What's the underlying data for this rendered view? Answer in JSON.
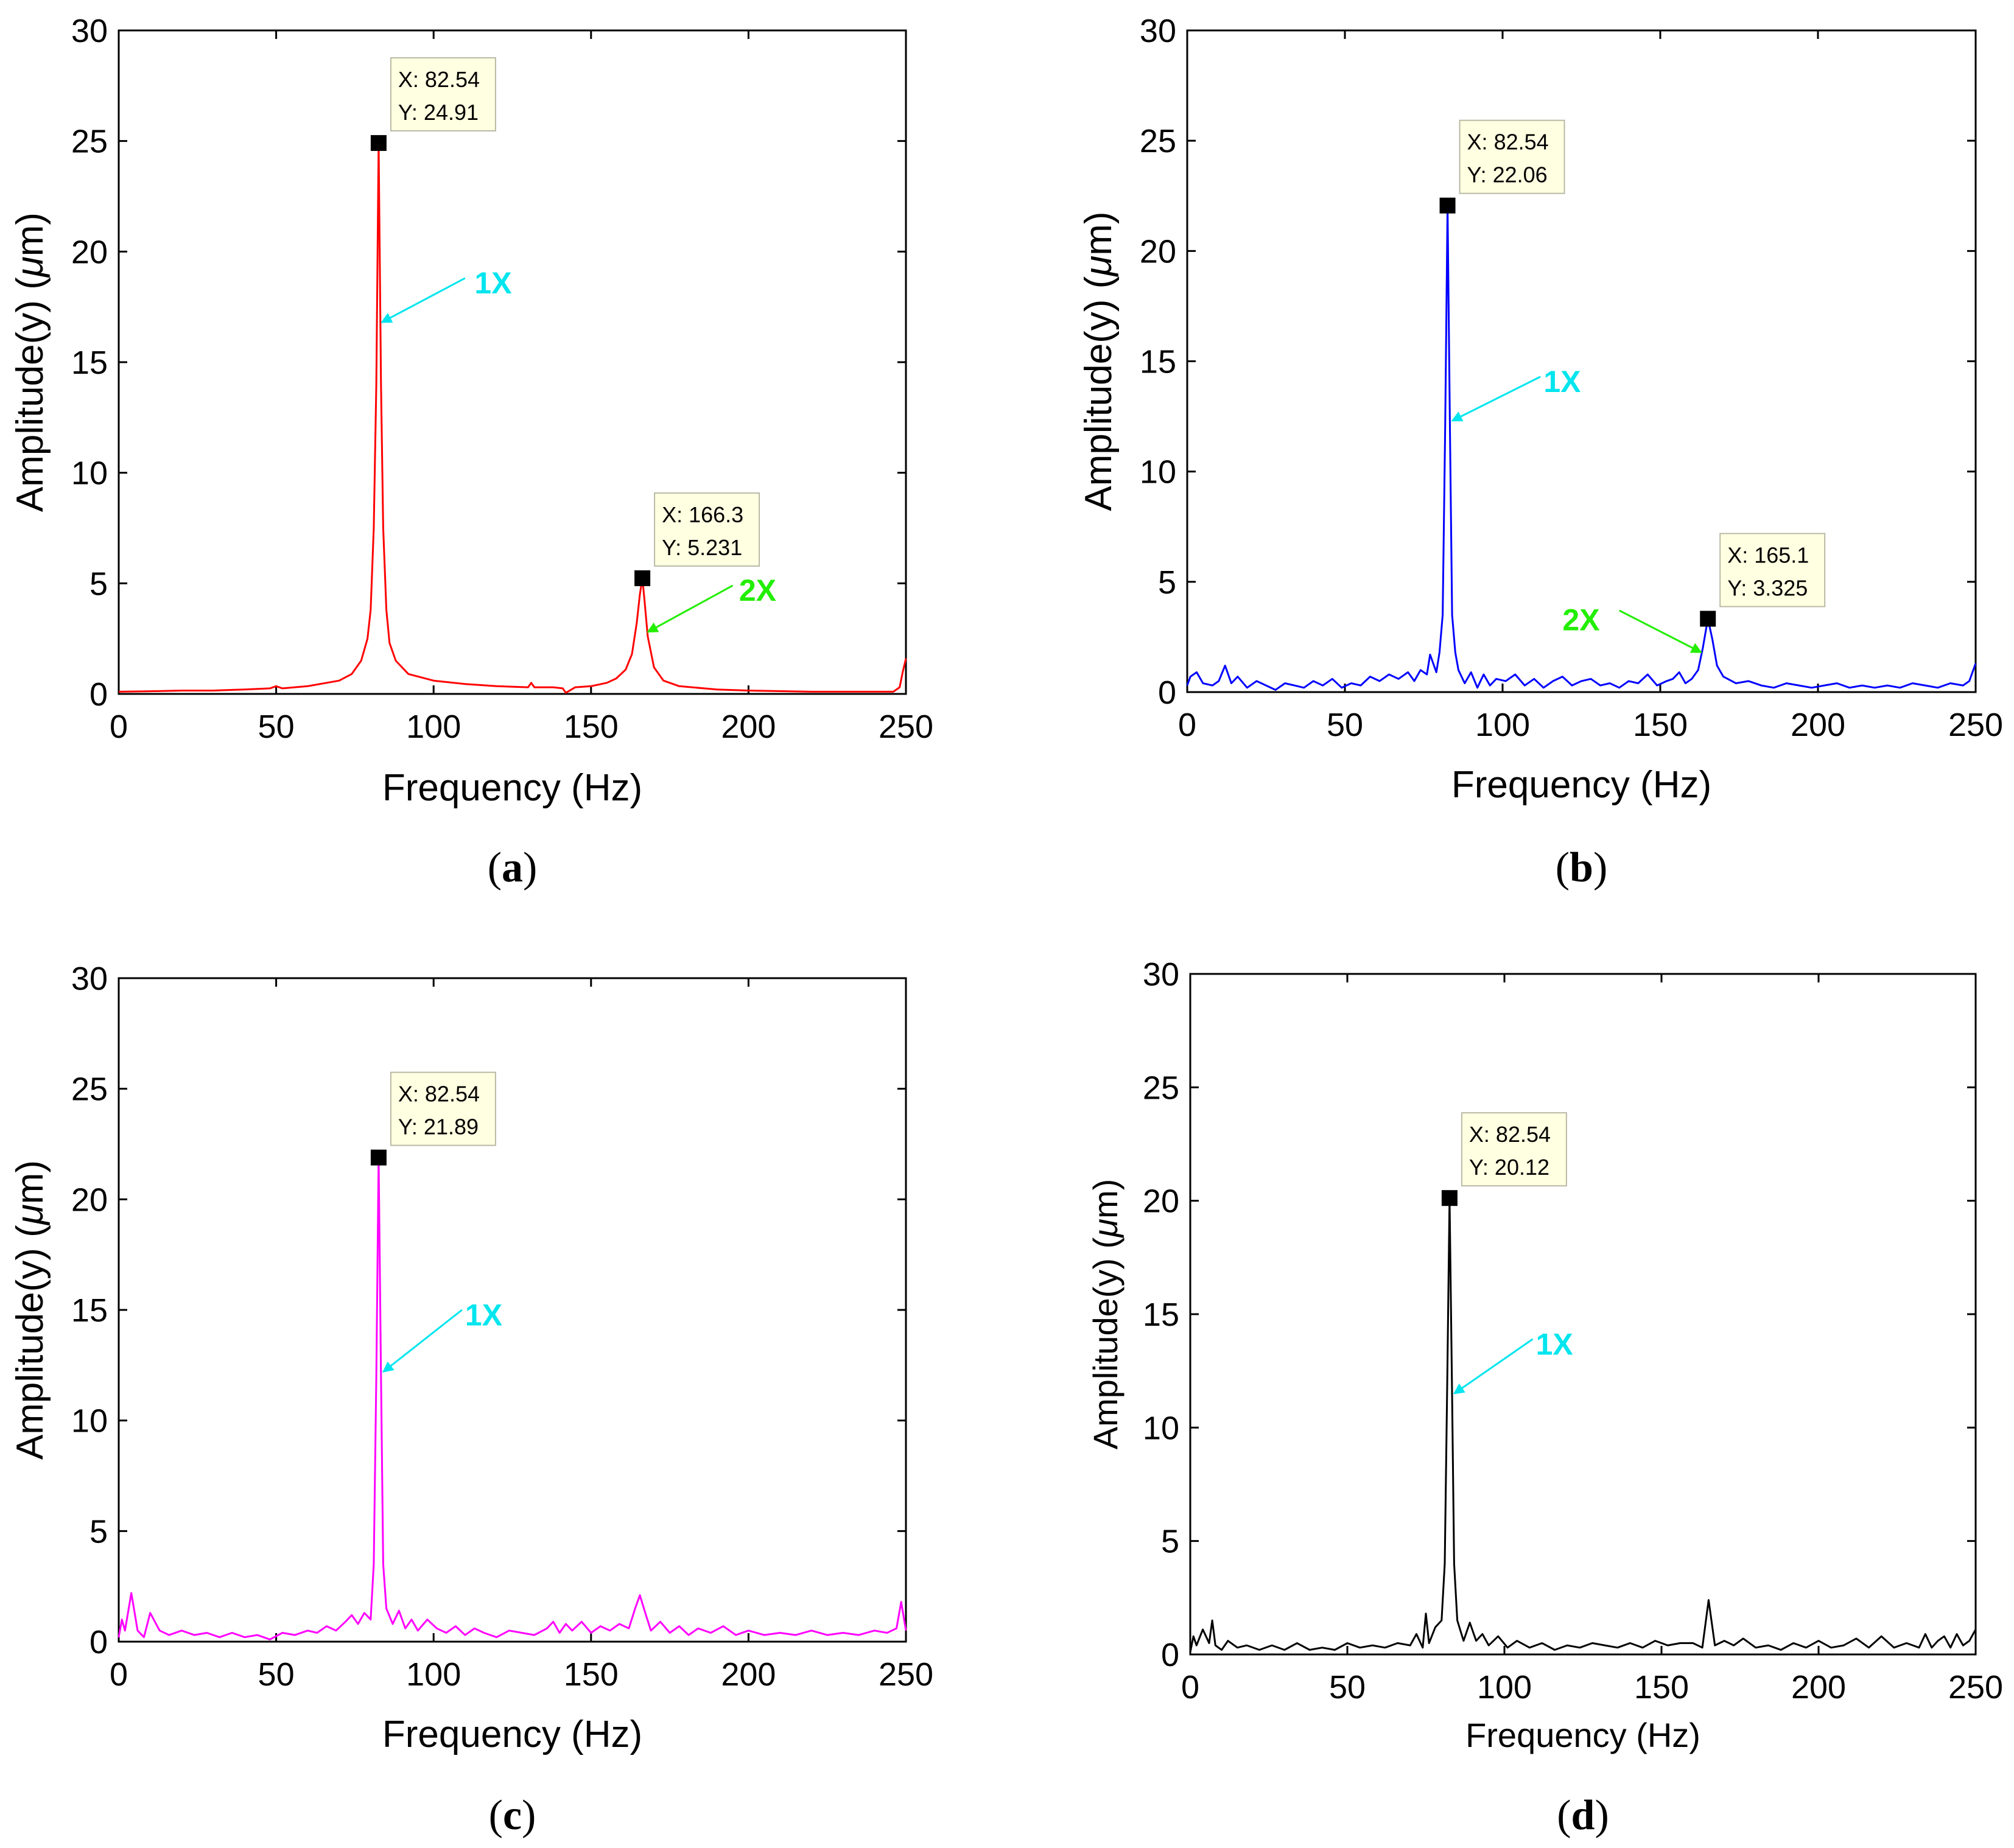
{
  "colors": {
    "a": "#ff0000",
    "b": "#0000ff",
    "c": "#ff00ff",
    "d": "#000000",
    "ann_1x": "#00e5ee",
    "ann_2x": "#22ee00"
  },
  "chart_data": [
    {
      "id": "a",
      "type": "line",
      "panel_label": "(a)",
      "xlabel": "Frequency (Hz)",
      "ylabel": "Amplitude(y) (μm)",
      "xlim": [
        0,
        250
      ],
      "ylim": [
        0,
        30
      ],
      "xticks": [
        0,
        50,
        100,
        150,
        200,
        250
      ],
      "yticks": [
        0,
        5,
        10,
        15,
        20,
        25,
        30
      ],
      "series": [
        {
          "name": "spectrum",
          "color": "#ff0000",
          "x": [
            0,
            10,
            20,
            30,
            40,
            48,
            50,
            52,
            60,
            66,
            70,
            74,
            77,
            79,
            80,
            81,
            81.8,
            82.54,
            83.3,
            84,
            85,
            86,
            88,
            92,
            100,
            110,
            120,
            130,
            131,
            132,
            138,
            141,
            142,
            145,
            150,
            155,
            158,
            161,
            163,
            164.5,
            165.5,
            166.3,
            167,
            168,
            170,
            173,
            178,
            190,
            200,
            220,
            240,
            246,
            248,
            249,
            250
          ],
          "y": [
            0.1,
            0.12,
            0.15,
            0.15,
            0.2,
            0.25,
            0.35,
            0.25,
            0.35,
            0.5,
            0.6,
            0.9,
            1.5,
            2.5,
            3.8,
            7.5,
            14,
            24.91,
            14,
            7.5,
            3.8,
            2.3,
            1.5,
            0.9,
            0.6,
            0.45,
            0.35,
            0.3,
            0.5,
            0.3,
            0.3,
            0.25,
            0.05,
            0.3,
            0.35,
            0.5,
            0.7,
            1.1,
            1.8,
            3.2,
            4.5,
            5.231,
            4.2,
            2.6,
            1.2,
            0.6,
            0.35,
            0.2,
            0.15,
            0.1,
            0.1,
            0.1,
            0.3,
            1.0,
            1.6
          ]
        }
      ],
      "datatips": [
        {
          "x": 82.54,
          "y": 24.91,
          "text_x": "X: 82.54",
          "text_y": "Y: 24.91"
        },
        {
          "x": 166.3,
          "y": 5.231,
          "text_x": "X: 166.3",
          "text_y": "Y: 5.231"
        }
      ],
      "annotations": [
        {
          "text": "1X",
          "color": "#00e5ee",
          "text_at": [
            113,
            18.6
          ],
          "tail": [
            110,
            18.8
          ],
          "head": [
            83.5,
            16.8
          ]
        },
        {
          "text": "2X",
          "color": "#22ee00",
          "text_at": [
            197,
            4.7
          ],
          "tail": [
            195,
            4.9
          ],
          "head": [
            168,
            2.8
          ]
        }
      ]
    },
    {
      "id": "b",
      "type": "line",
      "panel_label": "(b)",
      "xlabel": "Frequency (Hz)",
      "ylabel": "Amplitude(y) (μm)",
      "xlim": [
        0,
        250
      ],
      "ylim": [
        0,
        30
      ],
      "xticks": [
        0,
        50,
        100,
        150,
        200,
        250
      ],
      "yticks": [
        0,
        5,
        10,
        15,
        20,
        25,
        30
      ],
      "series": [
        {
          "name": "spectrum",
          "color": "#0000ff",
          "x": [
            0,
            1,
            3,
            5,
            8,
            10,
            12,
            14,
            16,
            19,
            22,
            25,
            28,
            31,
            34,
            37,
            40,
            43,
            46,
            49,
            52,
            55,
            58,
            61,
            64,
            67,
            70,
            72,
            74,
            76,
            77,
            79,
            80,
            81,
            81.8,
            82.54,
            83.3,
            84,
            85,
            86,
            88,
            90,
            92,
            94,
            96,
            98,
            101,
            104,
            107,
            110,
            113,
            116,
            119,
            122,
            125,
            128,
            131,
            134,
            137,
            140,
            143,
            146,
            149,
            152,
            154,
            156,
            158,
            160,
            162,
            163.5,
            165.1,
            166.5,
            168,
            170,
            174,
            178,
            182,
            186,
            190,
            194,
            198,
            202,
            206,
            210,
            214,
            218,
            222,
            226,
            230,
            234,
            238,
            242,
            246,
            248,
            250
          ],
          "y": [
            0.3,
            0.7,
            0.9,
            0.4,
            0.3,
            0.5,
            1.2,
            0.4,
            0.7,
            0.2,
            0.5,
            0.3,
            0.1,
            0.4,
            0.3,
            0.2,
            0.5,
            0.3,
            0.6,
            0.2,
            0.4,
            0.3,
            0.7,
            0.5,
            0.8,
            0.6,
            0.9,
            0.5,
            1.0,
            0.8,
            1.7,
            0.9,
            1.8,
            3.5,
            12,
            22.06,
            12,
            3.5,
            1.8,
            1.0,
            0.4,
            0.9,
            0.2,
            0.8,
            0.3,
            0.6,
            0.5,
            0.8,
            0.3,
            0.6,
            0.2,
            0.5,
            0.7,
            0.3,
            0.5,
            0.6,
            0.3,
            0.4,
            0.2,
            0.5,
            0.4,
            0.8,
            0.3,
            0.5,
            0.6,
            0.9,
            0.4,
            0.6,
            1.0,
            2.0,
            3.325,
            2.4,
            1.2,
            0.7,
            0.4,
            0.5,
            0.3,
            0.2,
            0.4,
            0.3,
            0.2,
            0.3,
            0.4,
            0.2,
            0.3,
            0.2,
            0.3,
            0.2,
            0.4,
            0.3,
            0.2,
            0.4,
            0.3,
            0.5,
            1.3
          ]
        }
      ],
      "datatips": [
        {
          "x": 82.54,
          "y": 22.06,
          "text_x": "X: 82.54",
          "text_y": "Y: 22.06"
        },
        {
          "x": 165.1,
          "y": 3.325,
          "text_x": "X: 165.1",
          "text_y": "Y: 3.325"
        }
      ],
      "annotations": [
        {
          "text": "1X",
          "color": "#00e5ee",
          "text_at": [
            113,
            14.1
          ],
          "tail": [
            112,
            14.3
          ],
          "head": [
            84,
            12.3
          ]
        },
        {
          "text": "2X",
          "color": "#22ee00",
          "text_at": [
            119,
            3.3
          ],
          "tail": [
            137,
            3.7
          ],
          "head": [
            163,
            1.8
          ]
        }
      ]
    },
    {
      "id": "c",
      "type": "line",
      "panel_label": "(c)",
      "xlabel": "Frequency (Hz)",
      "ylabel": "Amplitude(y) (μm)",
      "xlim": [
        0,
        250
      ],
      "ylim": [
        0,
        30
      ],
      "xticks": [
        0,
        50,
        100,
        150,
        200,
        250
      ],
      "yticks": [
        0,
        5,
        10,
        15,
        20,
        25,
        30
      ],
      "series": [
        {
          "name": "spectrum",
          "color": "#ff00ff",
          "x": [
            0,
            1,
            2,
            4,
            6,
            8,
            10,
            13,
            16,
            20,
            24,
            28,
            32,
            36,
            40,
            44,
            48,
            52,
            56,
            60,
            63,
            66,
            69,
            72,
            74,
            76,
            78,
            80,
            81,
            81.8,
            82.54,
            83.3,
            84,
            85,
            87,
            89,
            91,
            93,
            95,
            98,
            101,
            104,
            107,
            110,
            113,
            116,
            120,
            124,
            128,
            132,
            136,
            138,
            140,
            142,
            144,
            147,
            150,
            153,
            156,
            159,
            162,
            164,
            165.5,
            167,
            169,
            172,
            175,
            178,
            181,
            184,
            188,
            192,
            196,
            200,
            205,
            210,
            215,
            220,
            225,
            230,
            235,
            240,
            244,
            247,
            248.5,
            250
          ],
          "y": [
            0.2,
            1.0,
            0.5,
            2.2,
            0.5,
            0.2,
            1.3,
            0.5,
            0.3,
            0.5,
            0.3,
            0.4,
            0.2,
            0.4,
            0.2,
            0.3,
            0.1,
            0.4,
            0.3,
            0.5,
            0.4,
            0.7,
            0.5,
            0.9,
            1.2,
            0.8,
            1.3,
            1.0,
            3.5,
            12,
            21.89,
            12,
            3.5,
            1.5,
            0.8,
            1.4,
            0.6,
            1.0,
            0.5,
            1.0,
            0.6,
            0.4,
            0.7,
            0.3,
            0.6,
            0.4,
            0.2,
            0.5,
            0.4,
            0.3,
            0.6,
            0.9,
            0.4,
            0.8,
            0.5,
            0.9,
            0.4,
            0.7,
            0.5,
            0.8,
            0.6,
            1.5,
            2.1,
            1.4,
            0.5,
            0.9,
            0.4,
            0.7,
            0.3,
            0.6,
            0.4,
            0.7,
            0.3,
            0.5,
            0.3,
            0.4,
            0.3,
            0.5,
            0.3,
            0.4,
            0.3,
            0.5,
            0.4,
            0.6,
            1.8,
            0.5
          ]
        }
      ],
      "datatips": [
        {
          "x": 82.54,
          "y": 21.89,
          "text_x": "X: 82.54",
          "text_y": "Y: 21.89"
        }
      ],
      "annotations": [
        {
          "text": "1X",
          "color": "#00e5ee",
          "text_at": [
            110,
            14.8
          ],
          "tail": [
            109,
            15.0
          ],
          "head": [
            84,
            12.2
          ]
        }
      ]
    },
    {
      "id": "d",
      "type": "line",
      "panel_label": "(d)",
      "xlabel": "Frequency (Hz)",
      "ylabel": "Amplitude(y) (μm)",
      "xlim": [
        0,
        250
      ],
      "ylim": [
        0,
        30
      ],
      "xticks": [
        0,
        50,
        100,
        150,
        200,
        250
      ],
      "yticks": [
        0,
        5,
        10,
        15,
        20,
        25,
        30
      ],
      "series": [
        {
          "name": "spectrum",
          "color": "#000000",
          "x": [
            0,
            1,
            2,
            4,
            6,
            7,
            8,
            10,
            12,
            15,
            18,
            22,
            26,
            30,
            34,
            38,
            42,
            46,
            50,
            54,
            58,
            62,
            66,
            70,
            72,
            74,
            75,
            76,
            78,
            80,
            81,
            81.8,
            82.54,
            83.3,
            84,
            85,
            87,
            89,
            91,
            93,
            95,
            98,
            101,
            104,
            108,
            112,
            116,
            120,
            124,
            128,
            132,
            136,
            140,
            144,
            148,
            152,
            156,
            160,
            163,
            165,
            167,
            170,
            173,
            176,
            180,
            184,
            188,
            192,
            196,
            200,
            204,
            208,
            212,
            216,
            220,
            224,
            228,
            232,
            234,
            236,
            238,
            240,
            242,
            244,
            246,
            248,
            250
          ],
          "y": [
            0.1,
            0.8,
            0.4,
            1.1,
            0.5,
            1.5,
            0.4,
            0.2,
            0.6,
            0.3,
            0.4,
            0.2,
            0.4,
            0.2,
            0.5,
            0.2,
            0.3,
            0.2,
            0.5,
            0.3,
            0.4,
            0.3,
            0.5,
            0.4,
            0.9,
            0.3,
            1.8,
            0.5,
            1.2,
            1.5,
            4.0,
            12,
            20.12,
            12,
            4.0,
            1.5,
            0.6,
            1.4,
            0.6,
            0.9,
            0.4,
            0.8,
            0.3,
            0.6,
            0.3,
            0.5,
            0.2,
            0.4,
            0.3,
            0.5,
            0.4,
            0.3,
            0.5,
            0.3,
            0.6,
            0.4,
            0.5,
            0.5,
            0.3,
            2.4,
            0.4,
            0.6,
            0.4,
            0.7,
            0.3,
            0.4,
            0.2,
            0.5,
            0.3,
            0.6,
            0.3,
            0.4,
            0.7,
            0.3,
            0.8,
            0.3,
            0.5,
            0.3,
            0.9,
            0.3,
            0.6,
            0.8,
            0.3,
            0.9,
            0.4,
            0.6,
            1.1
          ]
        }
      ],
      "datatips": [
        {
          "x": 82.54,
          "y": 20.12,
          "text_x": "X: 82.54",
          "text_y": "Y: 20.12"
        }
      ],
      "annotations": [
        {
          "text": "1X",
          "color": "#00e5ee",
          "text_at": [
            110,
            13.7
          ],
          "tail": [
            109,
            13.9
          ],
          "head": [
            84,
            11.5
          ]
        }
      ]
    }
  ]
}
